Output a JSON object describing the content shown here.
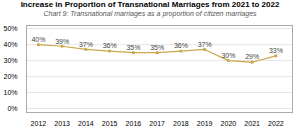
{
  "chart_data": {
    "type": "line",
    "title": "Increase in Proportion of Transnational Marriages from 2021 to 2022",
    "subtitle": "Chart 9: Transnational marriages as a proportion of citizen marriages",
    "x": [
      2012,
      2013,
      2014,
      2015,
      2016,
      2017,
      2018,
      2019,
      2020,
      2021,
      2022
    ],
    "values": [
      0.4,
      0.39,
      0.37,
      0.36,
      0.35,
      0.35,
      0.36,
      0.37,
      0.3,
      0.29,
      0.33
    ],
    "value_labels": [
      "40%",
      "39%",
      "37%",
      "36%",
      "35%",
      "35%",
      "36%",
      "37%",
      "30%",
      "29%",
      "33%"
    ],
    "color": "#C8A84B",
    "marker": "circle",
    "data_labels": true,
    "xlim": [
      2011.5,
      2022.7
    ],
    "xticks": [
      2012,
      2013,
      2014,
      2015,
      2016,
      2017,
      2018,
      2019,
      2020,
      2021,
      2022
    ],
    "ylim": [
      -0.025,
      0.52
    ],
    "yticks": [
      {
        "value": 0.0,
        "label": "0%"
      },
      {
        "value": 0.1,
        "label": "10%"
      },
      {
        "value": 0.2,
        "label": "20%"
      },
      {
        "value": 0.3,
        "label": "30%"
      },
      {
        "value": 0.4,
        "label": "40%"
      },
      {
        "value": 0.5,
        "label": "50%"
      }
    ],
    "grid": true
  }
}
